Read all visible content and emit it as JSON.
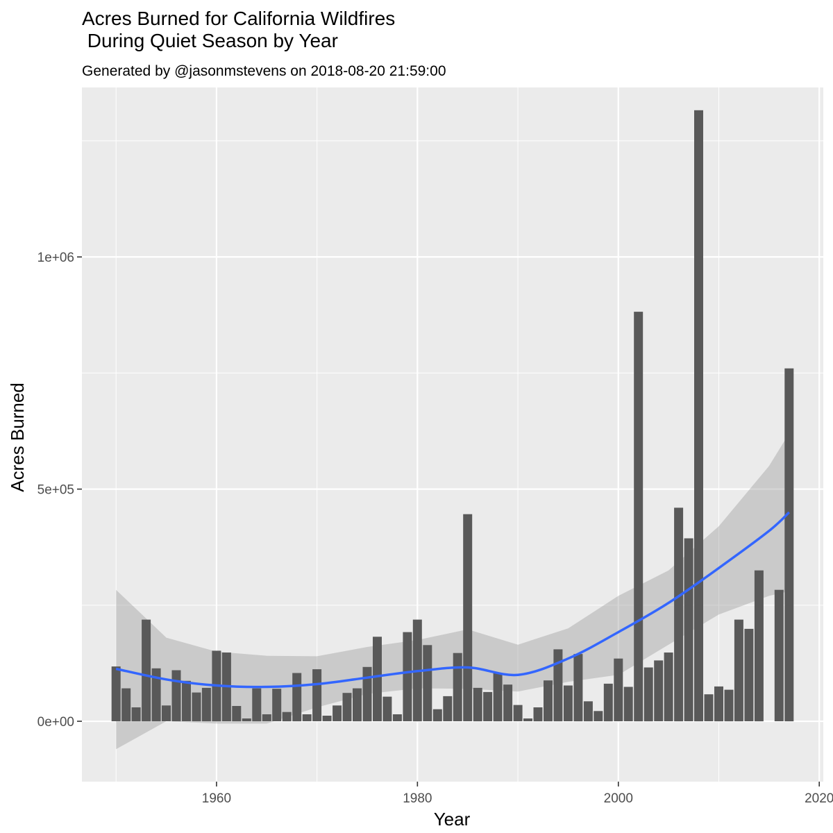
{
  "chart_data": {
    "type": "bar",
    "title": "Acres Burned for California Wildfires\n During Quiet Season by Year",
    "title_lines": [
      "Acres Burned for California Wildfires",
      " During Quiet Season by Year"
    ],
    "subtitle": "Generated by @jasonmstevens on 2018-08-20 21:59:00",
    "xlabel": "Year",
    "ylabel": "Acres Burned",
    "xlim": [
      1946.6,
      2020.4
    ],
    "ylim": [
      -130000,
      1365000
    ],
    "x_ticks": [
      1960,
      1980,
      2000,
      2020
    ],
    "x_tick_labels": [
      "1960",
      "1980",
      "2000",
      "2020"
    ],
    "y_ticks": [
      0,
      500000,
      1000000
    ],
    "y_tick_labels": [
      "0e+00",
      "5e+05",
      "1e+06"
    ],
    "grid": true,
    "legend": "none",
    "colors": {
      "panel": "#ebebeb",
      "grid": "#ffffff",
      "bar": "#595959",
      "smooth_line": "#3366ff",
      "ribbon": "#cccccc"
    },
    "x": [
      1950,
      1951,
      1952,
      1953,
      1954,
      1955,
      1956,
      1957,
      1958,
      1959,
      1960,
      1961,
      1962,
      1963,
      1964,
      1965,
      1966,
      1967,
      1968,
      1969,
      1970,
      1971,
      1972,
      1973,
      1974,
      1975,
      1976,
      1977,
      1978,
      1979,
      1980,
      1981,
      1982,
      1983,
      1984,
      1985,
      1986,
      1987,
      1988,
      1989,
      1990,
      1991,
      1992,
      1993,
      1994,
      1995,
      1996,
      1997,
      1998,
      1999,
      2000,
      2001,
      2002,
      2003,
      2004,
      2005,
      2006,
      2007,
      2008,
      2009,
      2010,
      2011,
      2012,
      2013,
      2014,
      2016,
      2017
    ],
    "values": [
      118000,
      71000,
      30000,
      219000,
      114000,
      34000,
      110000,
      87000,
      62000,
      72000,
      152000,
      148000,
      33000,
      6000,
      71000,
      15000,
      70000,
      20000,
      104000,
      15000,
      112000,
      12000,
      34000,
      61000,
      71000,
      117000,
      182000,
      53000,
      15000,
      192000,
      219000,
      164000,
      26000,
      54000,
      147000,
      446000,
      72000,
      63000,
      104000,
      79000,
      35000,
      6000,
      30000,
      88000,
      155000,
      77000,
      145000,
      43000,
      22000,
      81000,
      135000,
      74000,
      882000,
      116000,
      131000,
      148000,
      460000,
      394000,
      1316000,
      58000,
      75000,
      68000,
      219000,
      199000,
      325000,
      283000,
      760000
    ],
    "smooth": {
      "x": [
        1950,
        1955,
        1960,
        1965,
        1970,
        1975,
        1980,
        1985,
        1990,
        1995,
        2000,
        2005,
        2010,
        2015,
        2017
      ],
      "y": [
        113000,
        90000,
        77000,
        74000,
        80000,
        94000,
        108000,
        116000,
        100000,
        135000,
        192000,
        255000,
        330000,
        410000,
        450000
      ],
      "ymin": [
        -60000,
        0,
        -5000,
        -5000,
        30000,
        59000,
        71000,
        70000,
        64000,
        85000,
        100000,
        165000,
        230000,
        270000,
        280000
      ],
      "ymax": [
        283000,
        180000,
        150000,
        141000,
        140000,
        160000,
        175000,
        198000,
        165000,
        200000,
        270000,
        325000,
        420000,
        550000,
        620000
      ]
    }
  }
}
